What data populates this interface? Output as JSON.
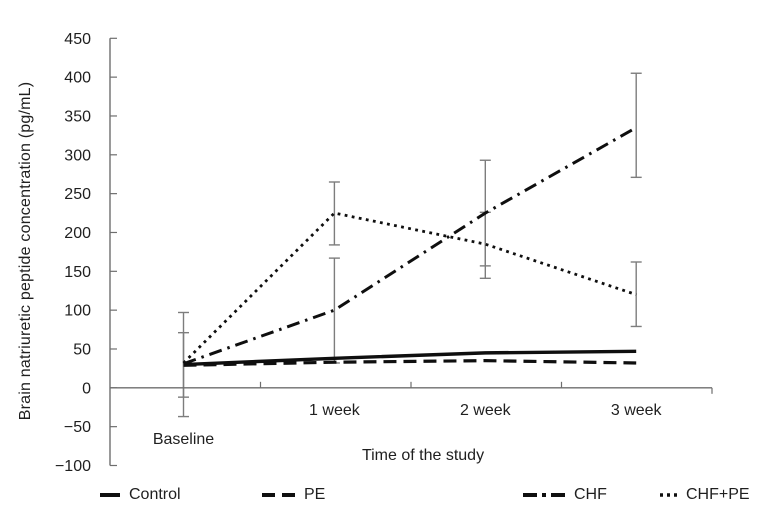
{
  "chart_data": {
    "type": "line",
    "title": "",
    "xlabel": "Time of the study",
    "ylabel": "Brain natriuretic peptide concentration (pg/mL)",
    "categories": [
      "Baseline",
      "1 week",
      "2 week",
      "3 week"
    ],
    "ylim": [
      -100,
      450
    ],
    "yticks": [
      450,
      400,
      350,
      300,
      250,
      200,
      150,
      100,
      50,
      0,
      -50,
      -100
    ],
    "grid": false,
    "legend_position": "bottom",
    "series": [
      {
        "name": "Control",
        "style": "solid",
        "values": [
          30,
          38,
          45,
          47
        ],
        "errors": [
          null,
          null,
          null,
          null
        ]
      },
      {
        "name": "PE",
        "style": "dashed",
        "values": [
          29,
          33,
          35,
          32
        ],
        "errors": [
          null,
          null,
          null,
          null
        ]
      },
      {
        "name": "CHF",
        "style": "dashdot",
        "values": [
          31,
          100,
          225,
          335
        ],
        "errors": [
          [
            -37,
            97
          ],
          [
            32,
            167
          ],
          [
            157,
            293
          ],
          [
            271,
            405
          ]
        ]
      },
      {
        "name": "CHF+PE",
        "style": "dotted",
        "values": [
          32,
          225,
          185,
          120
        ],
        "errors": [
          [
            -12,
            71
          ],
          [
            184,
            265
          ],
          [
            141,
            226
          ],
          [
            79,
            162
          ]
        ]
      }
    ]
  },
  "colors": {
    "line": "#0f0f0f",
    "axis": "#6e6e6e",
    "error_bar": "#7d7d7d",
    "text": "#1f1f1f",
    "background": "#ffffff"
  }
}
